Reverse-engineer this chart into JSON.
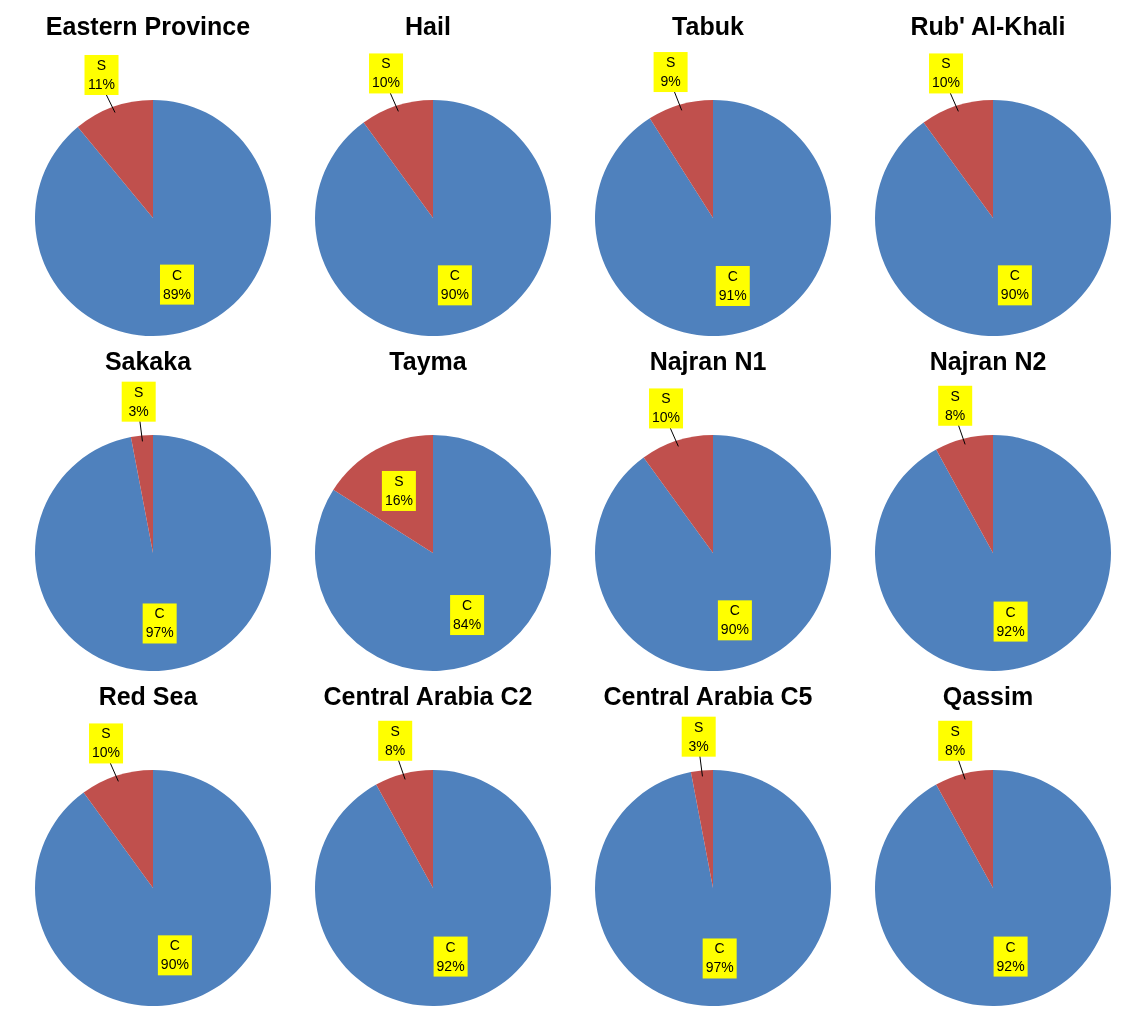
{
  "chart_data": [
    {
      "type": "pie",
      "title": "Eastern Province",
      "categories": [
        "C",
        "S"
      ],
      "values": [
        89,
        11
      ],
      "colors": [
        "#4f81bd",
        "#c0504d"
      ],
      "value_labels": [
        "89%",
        "11%"
      ]
    },
    {
      "type": "pie",
      "title": "Hail",
      "categories": [
        "C",
        "S"
      ],
      "values": [
        90,
        10
      ],
      "colors": [
        "#4f81bd",
        "#c0504d"
      ],
      "value_labels": [
        "90%",
        "10%"
      ]
    },
    {
      "type": "pie",
      "title": "Tabuk",
      "categories": [
        "C",
        "S"
      ],
      "values": [
        91,
        9
      ],
      "colors": [
        "#4f81bd",
        "#c0504d"
      ],
      "value_labels": [
        "91%",
        "9%"
      ]
    },
    {
      "type": "pie",
      "title": "Rub' Al-Khali",
      "categories": [
        "C",
        "S"
      ],
      "values": [
        90,
        10
      ],
      "colors": [
        "#4f81bd",
        "#c0504d"
      ],
      "value_labels": [
        "90%",
        "10%"
      ]
    },
    {
      "type": "pie",
      "title": "Sakaka",
      "categories": [
        "C",
        "S"
      ],
      "values": [
        97,
        3
      ],
      "colors": [
        "#4f81bd",
        "#c0504d"
      ],
      "value_labels": [
        "97%",
        "3%"
      ]
    },
    {
      "type": "pie",
      "title": "Tayma",
      "categories": [
        "C",
        "S"
      ],
      "values": [
        84,
        16
      ],
      "colors": [
        "#4f81bd",
        "#c0504d"
      ],
      "value_labels": [
        "84%",
        "16%"
      ]
    },
    {
      "type": "pie",
      "title": "Najran N1",
      "categories": [
        "C",
        "S"
      ],
      "values": [
        90,
        10
      ],
      "colors": [
        "#4f81bd",
        "#c0504d"
      ],
      "value_labels": [
        "90%",
        "10%"
      ]
    },
    {
      "type": "pie",
      "title": "Najran N2",
      "categories": [
        "C",
        "S"
      ],
      "values": [
        92,
        8
      ],
      "colors": [
        "#4f81bd",
        "#c0504d"
      ],
      "value_labels": [
        "92%",
        "8%"
      ]
    },
    {
      "type": "pie",
      "title": "Red Sea",
      "categories": [
        "C",
        "S"
      ],
      "values": [
        90,
        10
      ],
      "colors": [
        "#4f81bd",
        "#c0504d"
      ],
      "value_labels": [
        "90%",
        "10%"
      ]
    },
    {
      "type": "pie",
      "title": "Central Arabia C2",
      "categories": [
        "C",
        "S"
      ],
      "values": [
        92,
        8
      ],
      "colors": [
        "#4f81bd",
        "#c0504d"
      ],
      "value_labels": [
        "92%",
        "8%"
      ]
    },
    {
      "type": "pie",
      "title": "Central Arabia C5",
      "categories": [
        "C",
        "S"
      ],
      "values": [
        97,
        3
      ],
      "colors": [
        "#4f81bd",
        "#c0504d"
      ],
      "value_labels": [
        "97%",
        "3%"
      ]
    },
    {
      "type": "pie",
      "title": "Qassim",
      "categories": [
        "C",
        "S"
      ],
      "values": [
        92,
        8
      ],
      "colors": [
        "#4f81bd",
        "#c0504d"
      ],
      "value_labels": [
        "92%",
        "8%"
      ]
    }
  ]
}
